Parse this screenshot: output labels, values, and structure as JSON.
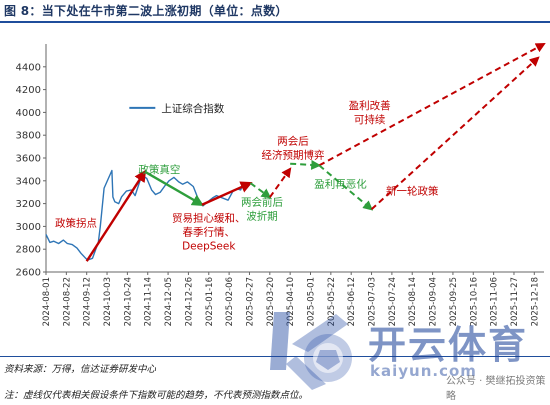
{
  "figure": {
    "title": "图 8：当下处在牛市第二波上涨初期（单位：点数）",
    "source": "资料来源：万得，信达证券研发中心",
    "note": "注：虚线仅代表相关假设条件下指数可能的趋势，不代表预测指数点位。"
  },
  "watermark": {
    "brand": "开云体育",
    "site": "kaiyun.com",
    "public": "公众号 · 樊继拓投资策略"
  },
  "chart_data": {
    "type": "line",
    "legend": {
      "label": "上证综合指数",
      "placement": "top-center",
      "color": "#2e75b6"
    },
    "ylim": [
      2600,
      4600
    ],
    "yticks": [
      2600,
      2800,
      3000,
      3200,
      3400,
      3600,
      3800,
      4000,
      4200,
      4400
    ],
    "xlim": [
      "2024-08-01",
      "2025-12-28"
    ],
    "xticks": [
      "2024-08-01",
      "2024-08-22",
      "2024-09-12",
      "2024-10-03",
      "2024-10-24",
      "2024-11-14",
      "2024-12-05",
      "2024-12-26",
      "2025-01-16",
      "2025-02-06",
      "2025-02-27",
      "2025-03-20",
      "2025-04-10",
      "2025-05-01",
      "2025-05-22",
      "2025-06-12",
      "2025-07-03",
      "2025-07-24",
      "2025-08-14",
      "2025-09-04",
      "2025-09-25",
      "2025-10-16",
      "2025-11-06",
      "2025-11-27",
      "2025-12-18"
    ],
    "series": [
      {
        "name": "上证综合指数",
        "color": "#2e75b6",
        "x": [
          "2024-08-01",
          "2024-08-05",
          "2024-08-09",
          "2024-08-14",
          "2024-08-19",
          "2024-08-23",
          "2024-08-28",
          "2024-09-02",
          "2024-09-06",
          "2024-09-11",
          "2024-09-13",
          "2024-09-18",
          "2024-09-24",
          "2024-09-26",
          "2024-09-30",
          "2024-10-08",
          "2024-10-09",
          "2024-10-11",
          "2024-10-15",
          "2024-10-18",
          "2024-10-23",
          "2024-10-28",
          "2024-11-01",
          "2024-11-06",
          "2024-11-08",
          "2024-11-13",
          "2024-11-18",
          "2024-11-22",
          "2024-11-27",
          "2024-12-02",
          "2024-12-06",
          "2024-12-11",
          "2024-12-16",
          "2024-12-20",
          "2024-12-25",
          "2024-12-31",
          "2025-01-06",
          "2025-01-10",
          "2025-01-14",
          "2025-01-20",
          "2025-01-24",
          "2025-02-05",
          "2025-02-10",
          "2025-02-14",
          "2025-02-18",
          "2025-02-21",
          "2025-02-24"
        ],
        "y": [
          2930,
          2860,
          2870,
          2850,
          2880,
          2850,
          2840,
          2810,
          2765,
          2720,
          2705,
          2720,
          2860,
          3000,
          3336,
          3490,
          3258,
          3217,
          3200,
          3260,
          3310,
          3320,
          3270,
          3400,
          3450,
          3420,
          3320,
          3280,
          3300,
          3360,
          3400,
          3430,
          3390,
          3370,
          3390,
          3350,
          3220,
          3180,
          3210,
          3250,
          3270,
          3230,
          3310,
          3330,
          3320,
          3380,
          3380
        ]
      }
    ],
    "trend_solid": [
      {
        "color": "#c00000",
        "points": [
          [
            "2024-09-12",
            2695
          ],
          [
            "2024-11-11",
            3480
          ]
        ]
      },
      {
        "color": "#2e9e3c",
        "points": [
          [
            "2024-11-11",
            3480
          ],
          [
            "2025-01-09",
            3190
          ]
        ]
      },
      {
        "color": "#c00000",
        "points": [
          [
            "2025-01-09",
            3190
          ],
          [
            "2025-02-28",
            3380
          ]
        ]
      }
    ],
    "trend_dashed": [
      {
        "color": "#2e9e3c",
        "points": [
          [
            "2025-02-28",
            3380
          ],
          [
            "2025-03-20",
            3255
          ]
        ]
      },
      {
        "color": "#c00000",
        "points": [
          [
            "2025-03-20",
            3255
          ],
          [
            "2025-04-10",
            3505
          ]
        ]
      },
      {
        "color": "#2e9e3c",
        "points": [
          [
            "2025-04-10",
            3550
          ],
          [
            "2025-05-10",
            3535
          ]
        ]
      },
      {
        "color": "#c00000",
        "points": [
          [
            "2025-05-10",
            3535
          ],
          [
            "2025-12-28",
            4600
          ]
        ]
      },
      {
        "color": "#2e9e3c",
        "points": [
          [
            "2025-05-10",
            3535
          ],
          [
            "2025-07-03",
            3150
          ]
        ]
      },
      {
        "color": "#c00000",
        "points": [
          [
            "2025-07-03",
            3150
          ],
          [
            "2025-12-22",
            4480
          ]
        ]
      }
    ],
    "annotations": [
      {
        "lines": [
          "政策拐点"
        ],
        "color": "#c00000",
        "x": "2024-09-01",
        "y": 3000
      },
      {
        "lines": [
          "政策真空"
        ],
        "color": "#2e9e3c",
        "x": "2024-11-26",
        "y": 3470
      },
      {
        "lines": [
          "贸易担心缓和、",
          "春季行情、",
          "DeepSeek"
        ],
        "color": "#c00000",
        "x": "2025-01-16",
        "y": 3045
      },
      {
        "lines": [
          "两会前后",
          "波折期"
        ],
        "color": "#2e9e3c",
        "x": "2025-03-12",
        "y": 3185
      },
      {
        "lines": [
          "两会后",
          "经济预期博弈"
        ],
        "color": "#c00000",
        "x": "2025-04-13",
        "y": 3720
      },
      {
        "lines": [
          "盈利再恶化"
        ],
        "color": "#2e9e3c",
        "x": "2025-06-01",
        "y": 3340
      },
      {
        "lines": [
          "盈利改善",
          "可持续"
        ],
        "color": "#c00000",
        "x": "2025-07-01",
        "y": 4030
      },
      {
        "lines": [
          "新一轮政策"
        ],
        "color": "#c00000",
        "x": "2025-08-14",
        "y": 3280
      }
    ]
  }
}
